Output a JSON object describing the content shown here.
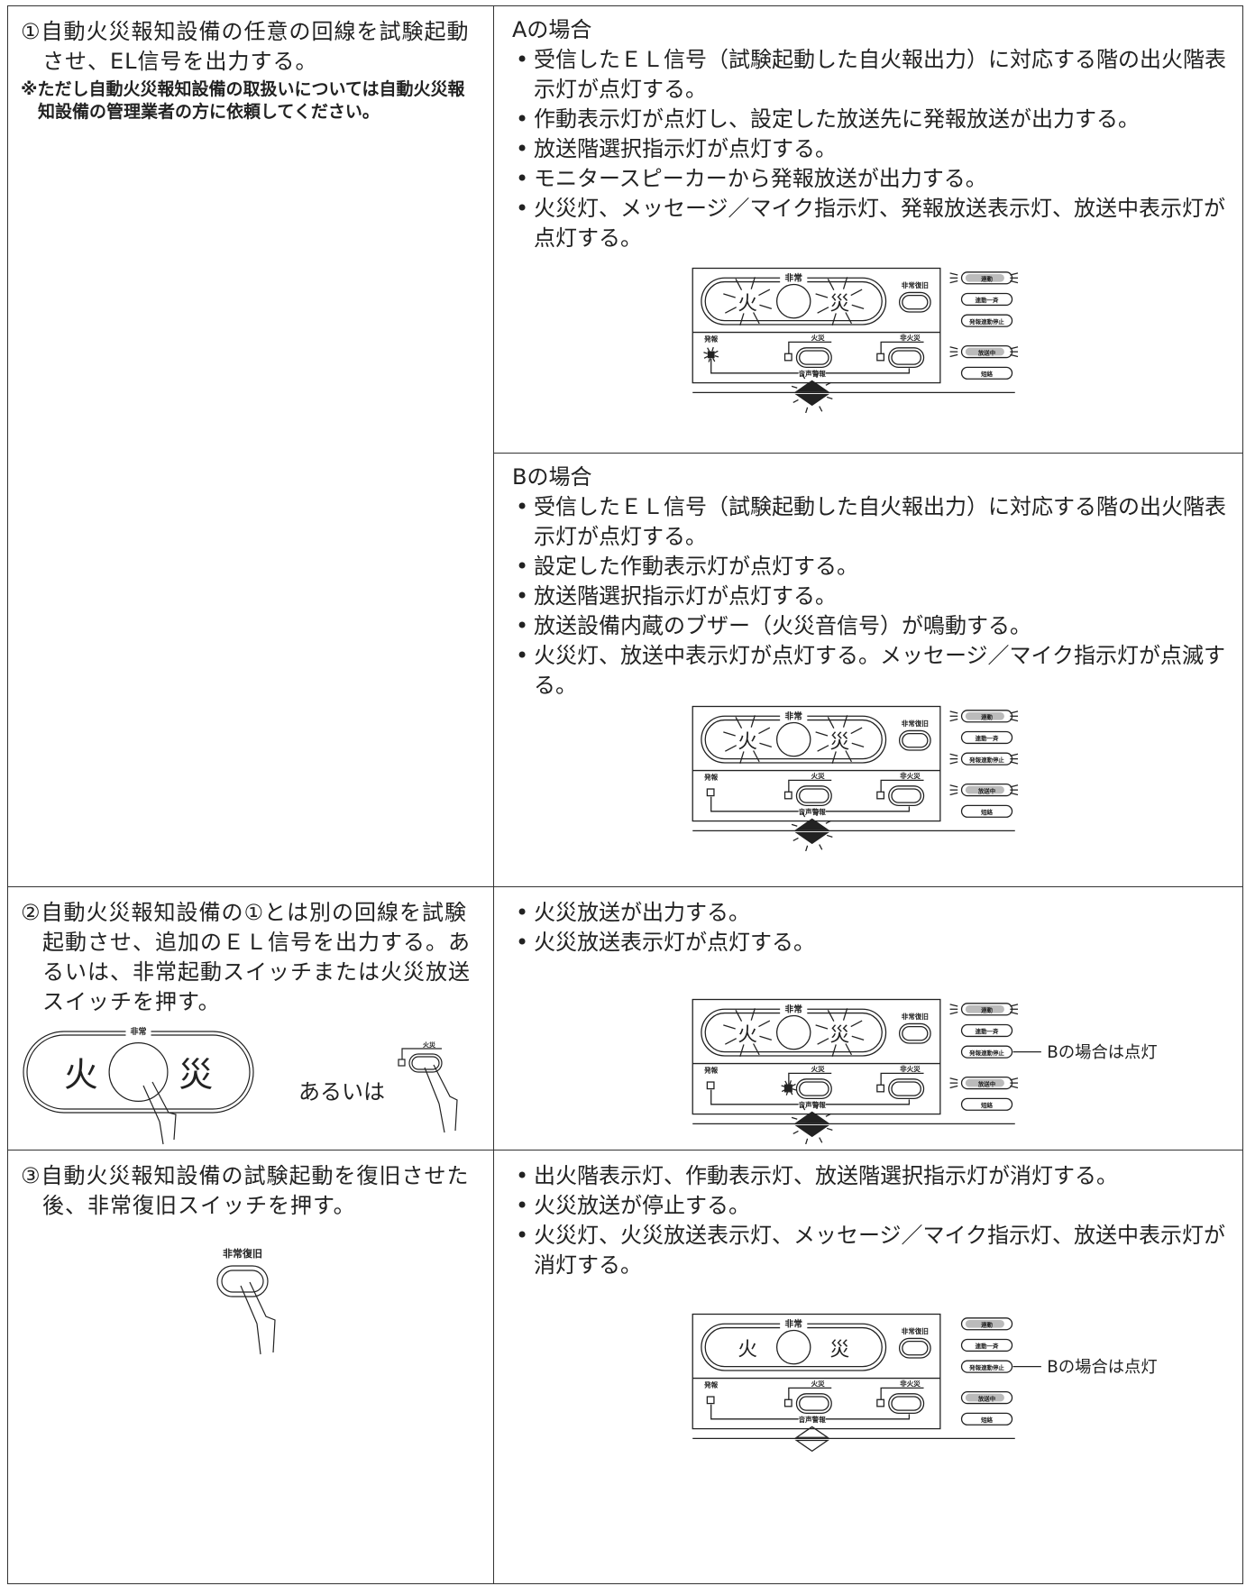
{
  "rows": [
    {
      "step": "①自動火災報知設備の任意の回線を試験起動させ、EL信号を出力する。",
      "note": "※ただし自動火災報知設備の取扱いについては自動火災報知設備の管理業者の方に依頼してください。",
      "cases": [
        {
          "title": "Aの場合",
          "items": [
            "受信したＥＬ信号（試験起動した自火報出力）に対応する階の出火階表示灯が点灯する。",
            "作動表示灯が点灯し、設定した放送先に発報放送が出力する。",
            "放送階選択指示灯が点灯する。",
            "モニタースピーカーから発報放送が出力する。",
            "火災灯、メッセージ／マイク指示灯、発報放送表示灯、放送中表示灯が点灯する。"
          ]
        },
        {
          "title": "Bの場合",
          "items": [
            "受信したＥＬ信号（試験起動した自火報出力）に対応する階の出火階表示灯が点灯する。",
            "設定した作動表示灯が点灯する。",
            "放送階選択指示灯が点灯する。",
            "放送設備内蔵のブザー（火災音信号）が鳴動する。",
            "火災灯、放送中表示灯が点灯する。メッセージ／マイク指示灯が点滅する。"
          ]
        }
      ]
    },
    {
      "step": "②自動火災報知設備の①とは別の回線を試験起動させ、追加のＥＬ信号を出力する。あるいは、非常起動スイッチまたは火災放送スイッチを押す。",
      "or": "あるいは",
      "items": [
        "火災放送が出力する。",
        "火災放送表示灯が点灯する。"
      ],
      "callout": "Bの場合は点灯"
    },
    {
      "step": "③自動火災報知設備の試験起動を復旧させた後、非常復旧スイッチを押す。",
      "items": [
        "出火階表示灯、作動表示灯、放送階選択指示灯が消灯する。",
        "火災放送が停止する。",
        "火災灯、火災放送表示灯、メッセージ／マイク指示灯、放送中表示灯が消灯する。"
      ],
      "callout": "Bの場合は点灯"
    }
  ],
  "panel": {
    "emergency": "非常",
    "fire": "火",
    "disaster": "災",
    "reset": "非常復旧",
    "link": "連動",
    "link_all": "連動一斉",
    "link_stop": "発報連動停止",
    "broadcasting": "放送中",
    "short": "短絡",
    "alarm": "発報",
    "fire_bc": "火災",
    "non_fire": "非火災",
    "voice": "音声警報"
  }
}
